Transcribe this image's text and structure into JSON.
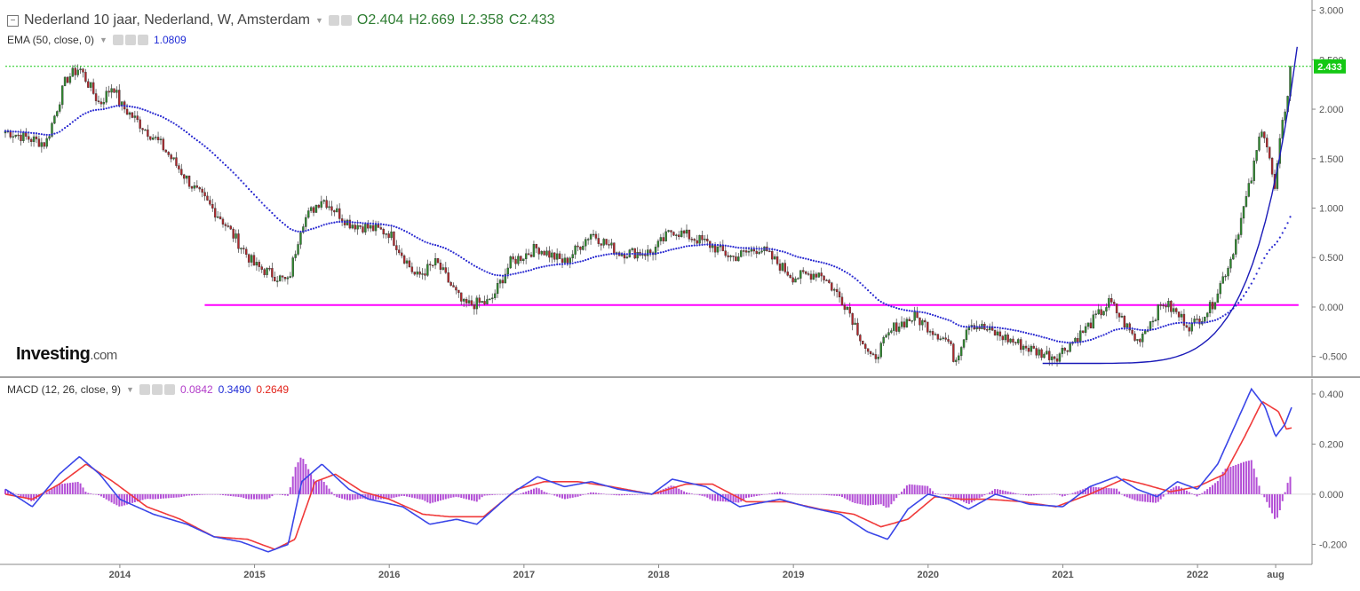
{
  "header": {
    "instrument_title": "Nederland 10 jaar, Nederland, W, Amsterdam",
    "open": "O2.404",
    "high": "H2.669",
    "low": "L2.358",
    "close": "C2.433"
  },
  "ema_legend": {
    "label": "EMA (50, close, 0)",
    "value": "1.0809"
  },
  "macd_legend": {
    "label": "MACD (12, 26, close, 9)",
    "hist": "0.0842",
    "macd": "0.3490",
    "signal": "0.2649"
  },
  "last_price_label": "2.433",
  "logo": {
    "name": "Investing",
    "suffix": ".com"
  },
  "colors": {
    "up_candle": "#2e8b2e",
    "down_candle": "#b3262b",
    "ema": "#2b2bd1",
    "support_line": "#ff00ff",
    "curve": "#1a1ab8",
    "macd_line": "#3a46e8",
    "signal_line": "#f03a3a",
    "histogram": "#b34fd6",
    "last_price_bg": "#14c814"
  },
  "chart_data": [
    {
      "type": "candlestick",
      "title": "Nederland 10 jaar, Nederland, W, Amsterdam",
      "x_ticks": [
        "2014",
        "2015",
        "2016",
        "2017",
        "2018",
        "2019",
        "2020",
        "2021",
        "2022",
        "aug"
      ],
      "x_tick_dates": [
        2014.0,
        2015.0,
        2016.0,
        2017.0,
        2018.0,
        2019.0,
        2020.0,
        2021.0,
        2022.0,
        2022.58
      ],
      "xlim": [
        2013.15,
        2022.85
      ],
      "y_ticks": [
        "3.000",
        "2.500",
        "2.000",
        "1.500",
        "1.000",
        "0.500",
        "0.000",
        "-0.500"
      ],
      "ylim": [
        -0.7,
        3.05
      ],
      "last_close": 2.433,
      "support_level": 0.02,
      "support_range": [
        2014.63,
        2022.75
      ],
      "key_points": [
        {
          "date": 2013.15,
          "value": 1.78
        },
        {
          "date": 2013.45,
          "value": 1.65
        },
        {
          "date": 2013.6,
          "value": 2.3
        },
        {
          "date": 2013.7,
          "value": 2.42
        },
        {
          "date": 2013.85,
          "value": 2.05
        },
        {
          "date": 2013.95,
          "value": 2.25
        },
        {
          "date": 2014.0,
          "value": 2.05
        },
        {
          "date": 2014.3,
          "value": 1.65
        },
        {
          "date": 2014.55,
          "value": 1.2
        },
        {
          "date": 2014.75,
          "value": 0.9
        },
        {
          "date": 2015.0,
          "value": 0.42
        },
        {
          "date": 2015.25,
          "value": 0.25
        },
        {
          "date": 2015.35,
          "value": 0.85
        },
        {
          "date": 2015.5,
          "value": 1.1
        },
        {
          "date": 2015.7,
          "value": 0.85
        },
        {
          "date": 2016.0,
          "value": 0.75
        },
        {
          "date": 2016.2,
          "value": 0.3
        },
        {
          "date": 2016.35,
          "value": 0.45
        },
        {
          "date": 2016.55,
          "value": 0.02
        },
        {
          "date": 2016.75,
          "value": 0.05
        },
        {
          "date": 2016.9,
          "value": 0.45
        },
        {
          "date": 2017.1,
          "value": 0.6
        },
        {
          "date": 2017.3,
          "value": 0.45
        },
        {
          "date": 2017.5,
          "value": 0.75
        },
        {
          "date": 2017.7,
          "value": 0.55
        },
        {
          "date": 2017.95,
          "value": 0.55
        },
        {
          "date": 2018.1,
          "value": 0.78
        },
        {
          "date": 2018.35,
          "value": 0.65
        },
        {
          "date": 2018.55,
          "value": 0.5
        },
        {
          "date": 2018.75,
          "value": 0.6
        },
        {
          "date": 2019.0,
          "value": 0.3
        },
        {
          "date": 2019.2,
          "value": 0.35
        },
        {
          "date": 2019.4,
          "value": 0.0
        },
        {
          "date": 2019.58,
          "value": -0.55
        },
        {
          "date": 2019.75,
          "value": -0.2
        },
        {
          "date": 2019.9,
          "value": -0.1
        },
        {
          "date": 2020.15,
          "value": -0.35
        },
        {
          "date": 2020.2,
          "value": -0.55
        },
        {
          "date": 2020.3,
          "value": -0.15
        },
        {
          "date": 2020.55,
          "value": -0.3
        },
        {
          "date": 2020.8,
          "value": -0.45
        },
        {
          "date": 2020.95,
          "value": -0.5
        },
        {
          "date": 2021.15,
          "value": -0.25
        },
        {
          "date": 2021.35,
          "value": 0.05
        },
        {
          "date": 2021.55,
          "value": -0.35
        },
        {
          "date": 2021.75,
          "value": 0.05
        },
        {
          "date": 2021.95,
          "value": -0.2
        },
        {
          "date": 2022.1,
          "value": 0.0
        },
        {
          "date": 2022.25,
          "value": 0.5
        },
        {
          "date": 2022.4,
          "value": 1.3
        },
        {
          "date": 2022.48,
          "value": 1.85
        },
        {
          "date": 2022.53,
          "value": 1.55
        },
        {
          "date": 2022.57,
          "value": 1.15
        },
        {
          "date": 2022.62,
          "value": 1.75
        },
        {
          "date": 2022.7,
          "value": 2.433
        }
      ]
    },
    {
      "type": "line",
      "title": "MACD (12, 26, close, 9)",
      "y_ticks": [
        "0.400",
        "0.200",
        "0.000",
        "-0.200"
      ],
      "ylim": [
        -0.28,
        0.46
      ],
      "series": [
        {
          "name": "MACD",
          "points": [
            [
              2013.15,
              0.02
            ],
            [
              2013.35,
              -0.05
            ],
            [
              2013.55,
              0.08
            ],
            [
              2013.7,
              0.15
            ],
            [
              2013.85,
              0.08
            ],
            [
              2014.0,
              -0.02
            ],
            [
              2014.25,
              -0.08
            ],
            [
              2014.5,
              -0.12
            ],
            [
              2014.7,
              -0.17
            ],
            [
              2014.9,
              -0.19
            ],
            [
              2015.1,
              -0.23
            ],
            [
              2015.25,
              -0.2
            ],
            [
              2015.35,
              0.05
            ],
            [
              2015.5,
              0.12
            ],
            [
              2015.7,
              0.02
            ],
            [
              2015.85,
              -0.02
            ],
            [
              2016.1,
              -0.05
            ],
            [
              2016.3,
              -0.12
            ],
            [
              2016.5,
              -0.1
            ],
            [
              2016.65,
              -0.12
            ],
            [
              2016.9,
              0.0
            ],
            [
              2017.1,
              0.07
            ],
            [
              2017.3,
              0.03
            ],
            [
              2017.5,
              0.05
            ],
            [
              2017.7,
              0.02
            ],
            [
              2017.95,
              0.0
            ],
            [
              2018.1,
              0.06
            ],
            [
              2018.35,
              0.03
            ],
            [
              2018.6,
              -0.05
            ],
            [
              2018.9,
              -0.02
            ],
            [
              2019.1,
              -0.05
            ],
            [
              2019.35,
              -0.08
            ],
            [
              2019.55,
              -0.15
            ],
            [
              2019.7,
              -0.18
            ],
            [
              2019.85,
              -0.06
            ],
            [
              2020.0,
              0.0
            ],
            [
              2020.15,
              -0.02
            ],
            [
              2020.3,
              -0.06
            ],
            [
              2020.5,
              0.0
            ],
            [
              2020.75,
              -0.04
            ],
            [
              2021.0,
              -0.05
            ],
            [
              2021.2,
              0.03
            ],
            [
              2021.4,
              0.07
            ],
            [
              2021.55,
              0.02
            ],
            [
              2021.7,
              -0.01
            ],
            [
              2021.85,
              0.05
            ],
            [
              2022.0,
              0.02
            ],
            [
              2022.15,
              0.12
            ],
            [
              2022.3,
              0.3
            ],
            [
              2022.4,
              0.42
            ],
            [
              2022.5,
              0.35
            ],
            [
              2022.58,
              0.23
            ],
            [
              2022.65,
              0.28
            ],
            [
              2022.7,
              0.349
            ]
          ]
        },
        {
          "name": "Signal",
          "points": [
            [
              2013.15,
              0.0
            ],
            [
              2013.35,
              -0.02
            ],
            [
              2013.55,
              0.04
            ],
            [
              2013.75,
              0.12
            ],
            [
              2013.95,
              0.05
            ],
            [
              2014.2,
              -0.05
            ],
            [
              2014.45,
              -0.1
            ],
            [
              2014.7,
              -0.17
            ],
            [
              2014.95,
              -0.18
            ],
            [
              2015.15,
              -0.22
            ],
            [
              2015.3,
              -0.18
            ],
            [
              2015.45,
              0.05
            ],
            [
              2015.6,
              0.08
            ],
            [
              2015.8,
              0.01
            ],
            [
              2016.0,
              -0.02
            ],
            [
              2016.25,
              -0.08
            ],
            [
              2016.45,
              -0.09
            ],
            [
              2016.7,
              -0.09
            ],
            [
              2016.95,
              0.02
            ],
            [
              2017.15,
              0.05
            ],
            [
              2017.4,
              0.05
            ],
            [
              2017.65,
              0.03
            ],
            [
              2017.95,
              0.0
            ],
            [
              2018.2,
              0.04
            ],
            [
              2018.4,
              0.04
            ],
            [
              2018.65,
              -0.03
            ],
            [
              2018.95,
              -0.03
            ],
            [
              2019.2,
              -0.06
            ],
            [
              2019.45,
              -0.08
            ],
            [
              2019.65,
              -0.13
            ],
            [
              2019.85,
              -0.1
            ],
            [
              2020.05,
              -0.01
            ],
            [
              2020.25,
              -0.02
            ],
            [
              2020.45,
              -0.02
            ],
            [
              2020.7,
              -0.03
            ],
            [
              2020.95,
              -0.05
            ],
            [
              2021.2,
              0.0
            ],
            [
              2021.45,
              0.06
            ],
            [
              2021.6,
              0.04
            ],
            [
              2021.8,
              0.01
            ],
            [
              2022.0,
              0.03
            ],
            [
              2022.2,
              0.08
            ],
            [
              2022.35,
              0.23
            ],
            [
              2022.48,
              0.37
            ],
            [
              2022.6,
              0.33
            ],
            [
              2022.66,
              0.26
            ],
            [
              2022.7,
              0.265
            ]
          ]
        }
      ]
    }
  ]
}
